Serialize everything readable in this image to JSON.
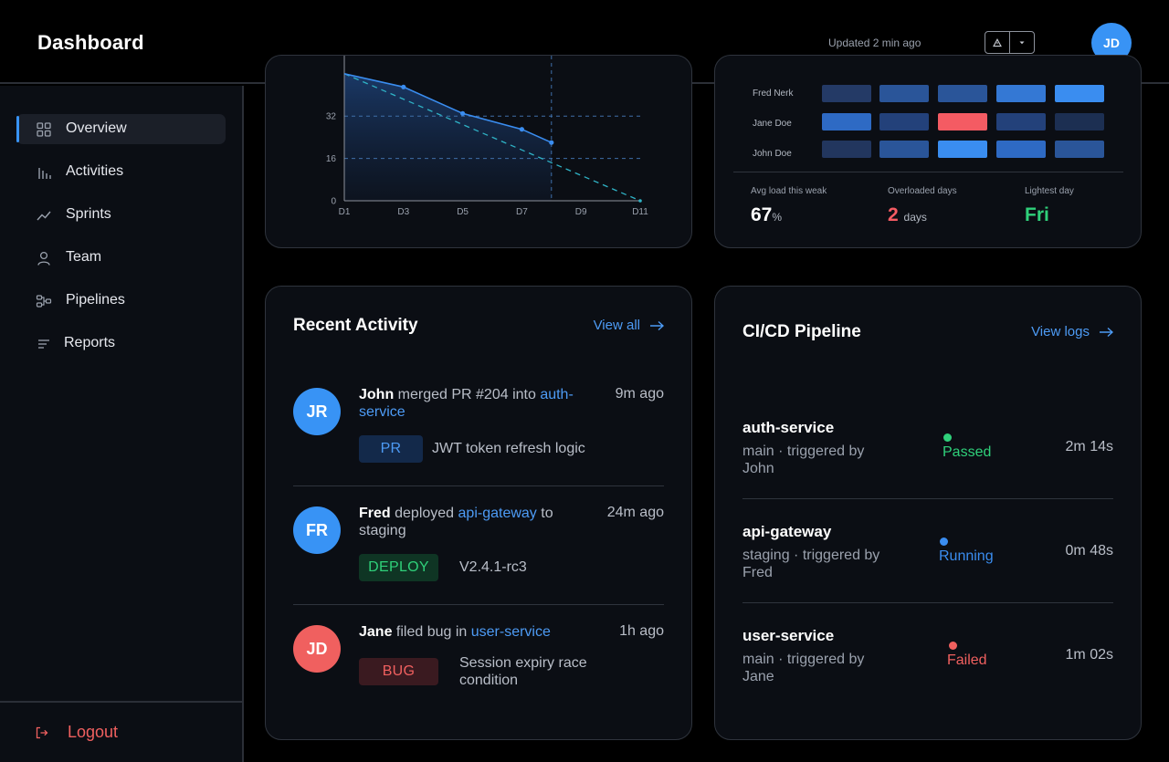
{
  "header": {
    "title": "Dashboard",
    "updated": "Updated 2 min ago",
    "avatar_initials": "JD",
    "actions": [
      "warning-icon",
      "caret-down-icon"
    ]
  },
  "sidebar": {
    "items": [
      {
        "label": "Overview",
        "icon": "grid-icon",
        "active": true
      },
      {
        "label": "Activities",
        "icon": "bar-chart-icon"
      },
      {
        "label": "Sprints",
        "icon": "trend-icon"
      },
      {
        "label": "Team",
        "icon": "user-icon"
      },
      {
        "label": "Pipelines",
        "icon": "pipeline-icon"
      },
      {
        "label": "Reports",
        "icon": "list-icon"
      }
    ],
    "logout_label": "Logout"
  },
  "burndown": {
    "chart_data": {
      "type": "line",
      "x_ticks": [
        "D1",
        "D3",
        "D5",
        "D7",
        "D9",
        "D11"
      ],
      "y_ticks": [
        0,
        16,
        32
      ],
      "xlim": [
        1,
        11
      ],
      "ylim": [
        0,
        48
      ],
      "series": [
        {
          "kind": "actual",
          "x": [
            1,
            3,
            5,
            7,
            8
          ],
          "y": [
            48,
            43,
            33,
            27,
            22
          ],
          "color": "#3a8df0"
        },
        {
          "kind": "ideal",
          "x": [
            1,
            11
          ],
          "y": [
            48,
            0
          ],
          "color": "#2fb3c6"
        }
      ],
      "today_marker_x": 8,
      "grid_y": [
        16,
        32
      ]
    }
  },
  "workload": {
    "rows": [
      {
        "name": "Fred Nerk",
        "cells": [
          "#243a66",
          "#2a5599",
          "#2a5599",
          "#3478d4",
          "#3a8df0"
        ]
      },
      {
        "name": "Jane Doe",
        "cells": [
          "#2e6ac4",
          "#23417a",
          "#f45b63",
          "#23417a",
          "#1c2f52"
        ]
      },
      {
        "name": "John Doe",
        "cells": [
          "#22365e",
          "#2a5599",
          "#3a8df0",
          "#2e6ac4",
          "#2a5599"
        ]
      }
    ],
    "stats": [
      {
        "label": "Avg load this weak",
        "value": "67",
        "unit": "%",
        "color": "#ffffff"
      },
      {
        "label": "Overloaded days",
        "value": "2",
        "unit": "days",
        "color": "#f45b63"
      },
      {
        "label": "Lightest day",
        "value": "Fri",
        "unit": "",
        "color": "#2fd07a"
      }
    ]
  },
  "activity": {
    "title": "Recent Activity",
    "view_all": "View all",
    "items": [
      {
        "initials": "JR",
        "avatar_color": "#3893f5",
        "actor": "John",
        "verb": " merged PR #204 into ",
        "target": "auth-service",
        "suffix": "",
        "time": "9m ago",
        "tag": "PR",
        "tag_bg": "#13294a",
        "tag_fg": "#4d9bf5",
        "desc": "JWT token refresh logic"
      },
      {
        "initials": "FR",
        "avatar_color": "#3893f5",
        "actor": "Fred",
        "verb": " deployed ",
        "target": "api-gateway",
        "suffix": " to staging",
        "time": "24m ago",
        "tag": "DEPLOY",
        "tag_bg": "#0f3524",
        "tag_fg": "#2fd07a",
        "desc": "V2.4.1-rc3"
      },
      {
        "initials": "JD",
        "avatar_color": "#f0605f",
        "actor": "Jane",
        "verb": " filed bug in ",
        "target": "user-service",
        "suffix": "",
        "time": "1h ago",
        "tag": "BUG",
        "tag_bg": "#3a1a20",
        "tag_fg": "#f0605f",
        "desc": "Session expiry race condition"
      }
    ]
  },
  "pipeline": {
    "title": "CI/CD Pipeline",
    "view_logs": "View logs",
    "items": [
      {
        "name": "auth-service",
        "meta": "main · triggered by John",
        "status": "Passed",
        "status_color": "#2fd07a",
        "duration": "2m 14s"
      },
      {
        "name": "api-gateway",
        "meta": "staging · triggered by Fred",
        "status": "Running",
        "status_color": "#3a8df0",
        "duration": "0m 48s"
      },
      {
        "name": "user-service",
        "meta": "main · triggered by Jane",
        "status": "Failed",
        "status_color": "#f0605f",
        "duration": "1m 02s"
      }
    ]
  }
}
